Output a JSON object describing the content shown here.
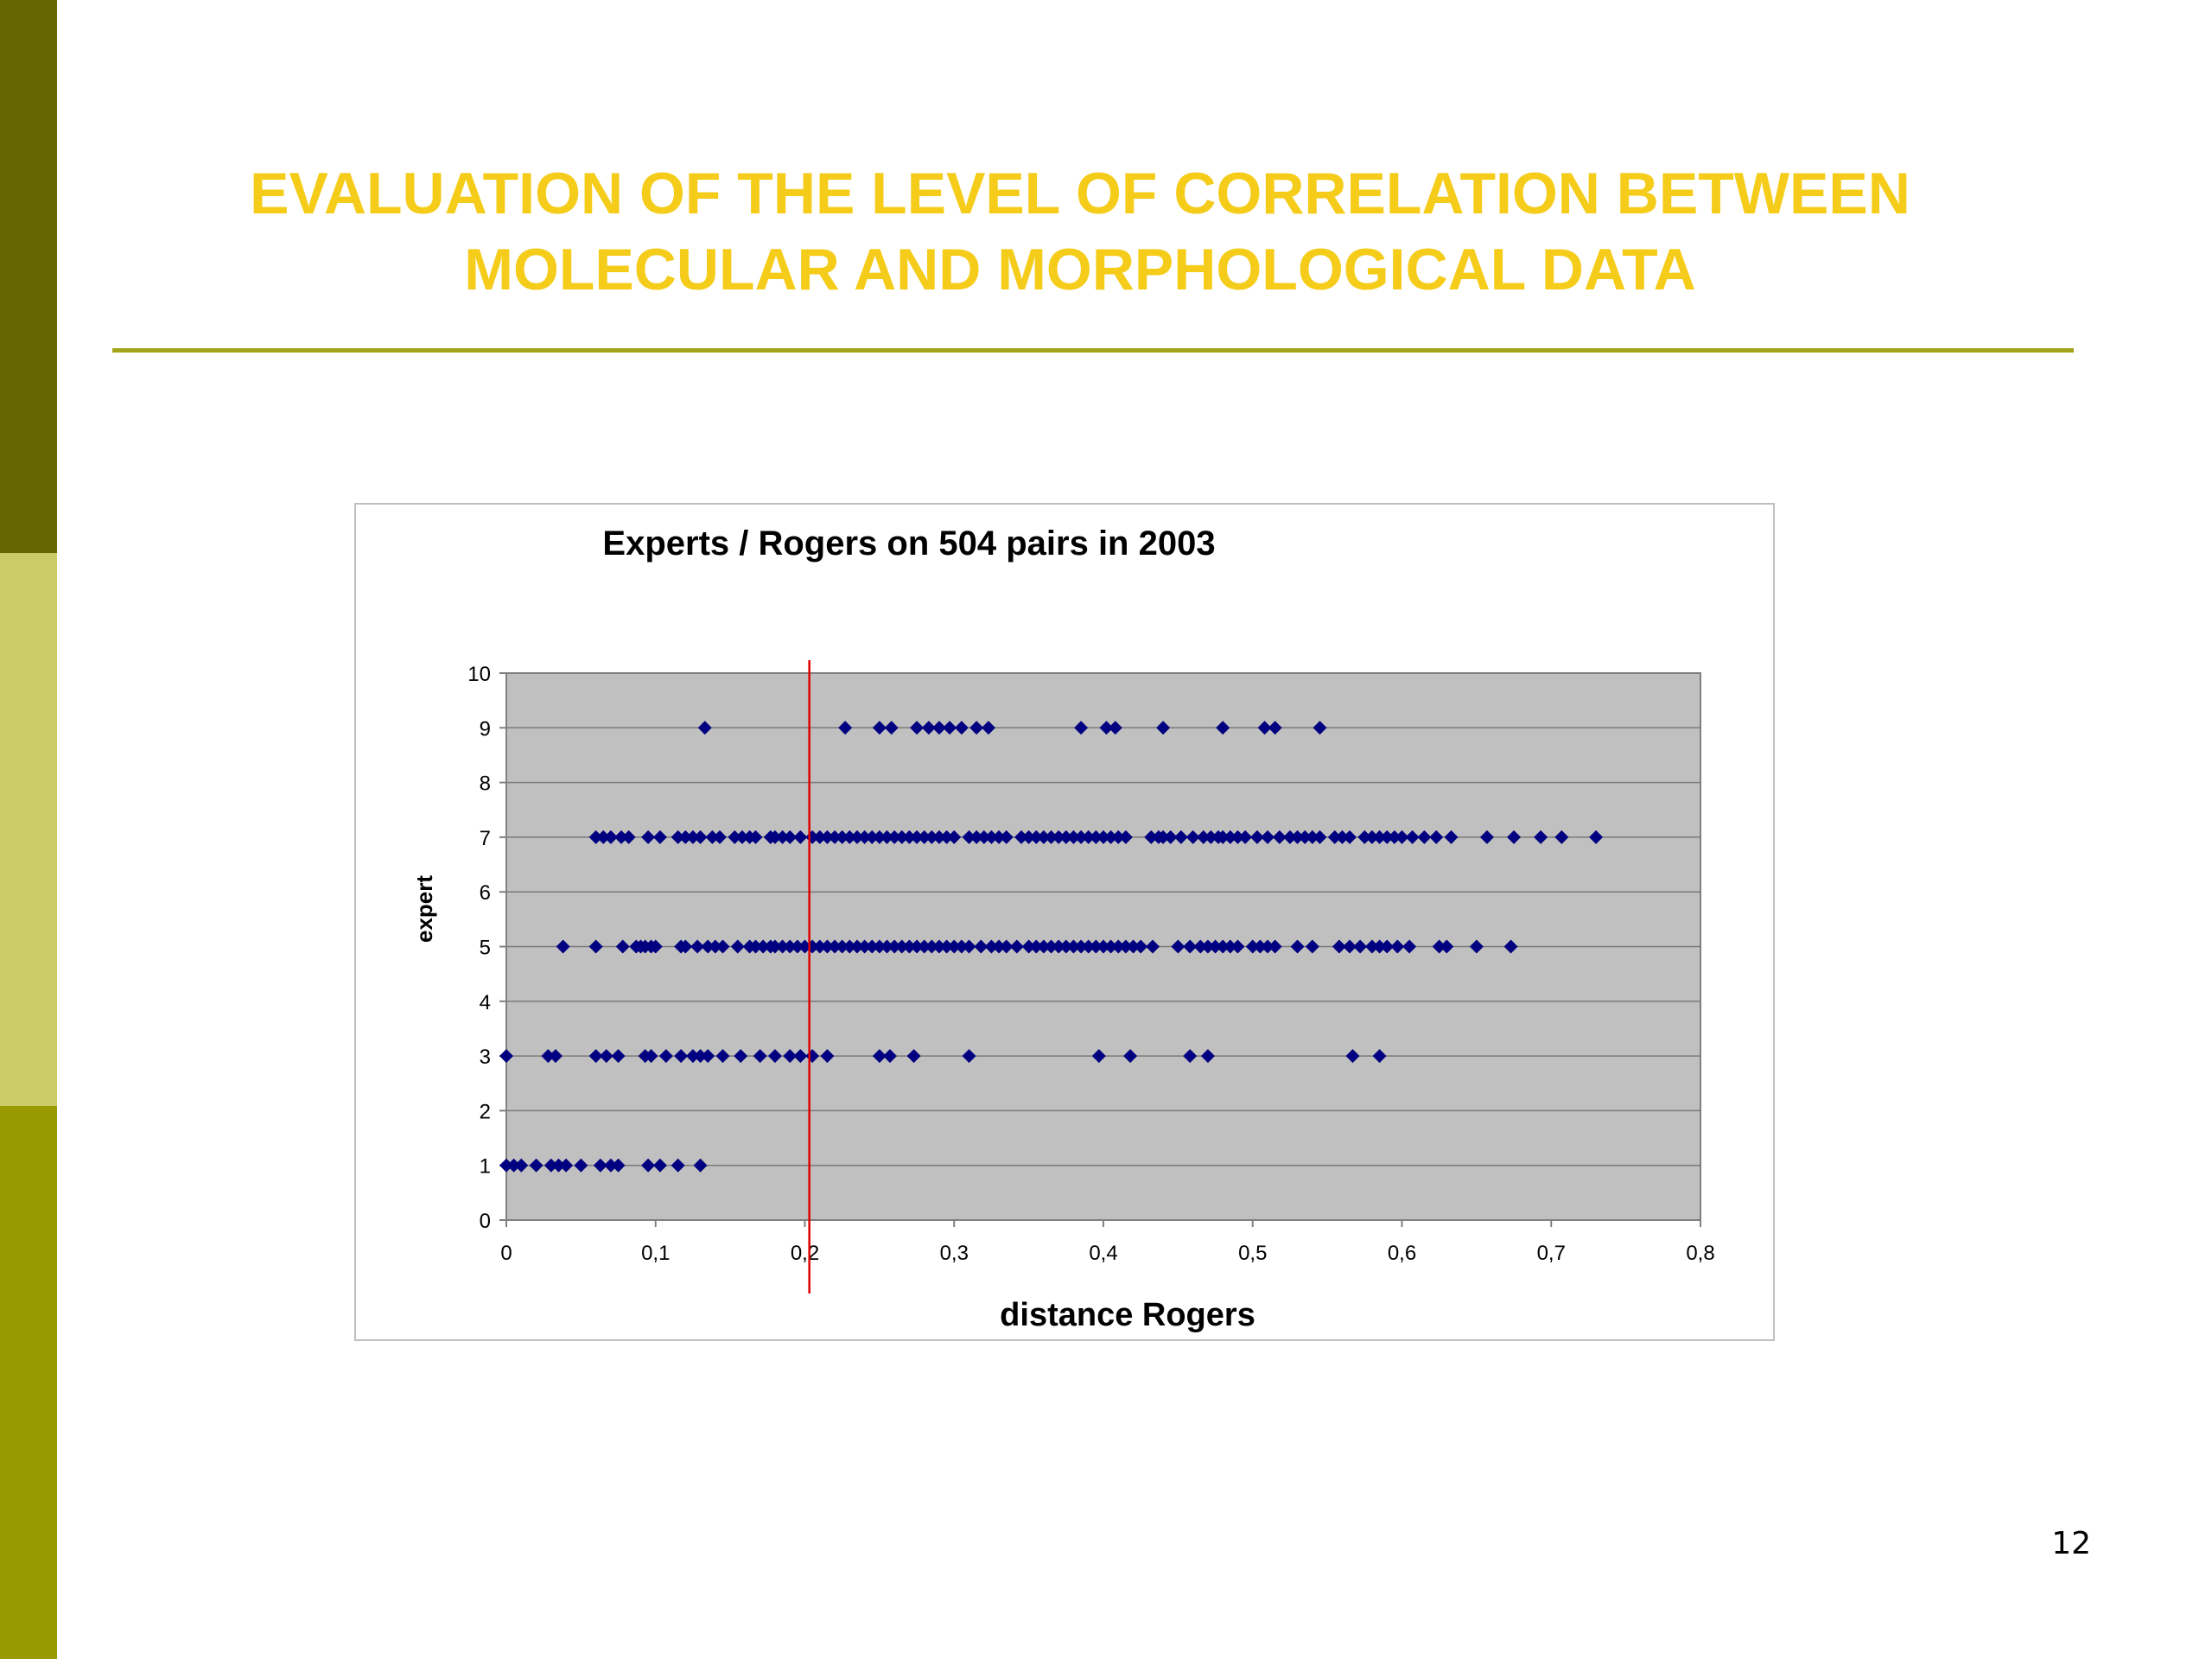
{
  "slide": {
    "title_lines": [
      "EVALUATION OF THE LEVEL OF CORRELATION BETWEEN",
      "MOLECULAR AND MORPHOLOGICAL DATA"
    ],
    "page_number": "12",
    "colors": {
      "title": "#f5cc1a",
      "band_top": "#666600",
      "band_mid": "#cccc66",
      "band_bottom": "#999900",
      "rule": "#a3a31a"
    }
  },
  "chart_data": {
    "type": "scatter",
    "title": "Experts / Rogers on 504 pairs in 2003",
    "xlabel": "distance Rogers",
    "ylabel": "expert",
    "xlim": [
      0,
      0.8
    ],
    "ylim": [
      0,
      10
    ],
    "x_ticks": [
      "0",
      "0,1",
      "0,2",
      "0,3",
      "0,4",
      "0,5",
      "0,6",
      "0,7",
      "0,8"
    ],
    "y_ticks": [
      "0",
      "1",
      "2",
      "3",
      "4",
      "5",
      "6",
      "7",
      "8",
      "9",
      "10"
    ],
    "grid": "horizontal",
    "plot_background": "#c0c0c0",
    "marker_color": "#000080",
    "marker": "diamond",
    "reference_line": {
      "x": 0.203,
      "color": "#e00000"
    },
    "series": [
      {
        "points": {
          "1": [
            0,
            0.005,
            0.01,
            0.02,
            0.03,
            0.035,
            0.04,
            0.05,
            0.063,
            0.07,
            0.075,
            0.095,
            0.103,
            0.115,
            0.13
          ],
          "3": [
            0,
            0.028,
            0.033,
            0.06,
            0.067,
            0.075,
            0.093,
            0.097,
            0.107,
            0.117,
            0.125,
            0.13,
            0.135,
            0.145,
            0.157,
            0.17,
            0.18,
            0.19,
            0.197,
            0.205,
            0.215,
            0.25,
            0.257,
            0.273,
            0.31,
            0.397,
            0.418,
            0.458,
            0.47,
            0.567,
            0.585
          ],
          "5": [
            0.038,
            0.06,
            0.078,
            0.087,
            0.09,
            0.093,
            0.097,
            0.1,
            0.117,
            0.12,
            0.128,
            0.135,
            0.14,
            0.145,
            0.155,
            0.163,
            0.167,
            0.172,
            0.177,
            0.18,
            0.185,
            0.19,
            0.195,
            0.2,
            0.205,
            0.21,
            0.215,
            0.22,
            0.225,
            0.23,
            0.235,
            0.24,
            0.245,
            0.25,
            0.255,
            0.26,
            0.265,
            0.27,
            0.275,
            0.28,
            0.285,
            0.29,
            0.295,
            0.3,
            0.305,
            0.31,
            0.318,
            0.325,
            0.33,
            0.335,
            0.342,
            0.35,
            0.355,
            0.36,
            0.365,
            0.37,
            0.375,
            0.38,
            0.385,
            0.39,
            0.395,
            0.4,
            0.405,
            0.41,
            0.415,
            0.42,
            0.425,
            0.433,
            0.45,
            0.458,
            0.465,
            0.47,
            0.475,
            0.48,
            0.485,
            0.49,
            0.5,
            0.505,
            0.51,
            0.515,
            0.53,
            0.54,
            0.558,
            0.565,
            0.572,
            0.58,
            0.585,
            0.59,
            0.597,
            0.605,
            0.625,
            0.63,
            0.65,
            0.673
          ],
          "7": [
            0.06,
            0.065,
            0.07,
            0.077,
            0.082,
            0.095,
            0.103,
            0.115,
            0.12,
            0.125,
            0.13,
            0.138,
            0.143,
            0.153,
            0.158,
            0.163,
            0.167,
            0.177,
            0.18,
            0.185,
            0.19,
            0.197,
            0.205,
            0.21,
            0.215,
            0.22,
            0.225,
            0.23,
            0.235,
            0.24,
            0.245,
            0.25,
            0.255,
            0.26,
            0.265,
            0.27,
            0.275,
            0.28,
            0.285,
            0.29,
            0.295,
            0.3,
            0.31,
            0.315,
            0.32,
            0.325,
            0.33,
            0.335,
            0.345,
            0.35,
            0.355,
            0.36,
            0.365,
            0.37,
            0.375,
            0.38,
            0.385,
            0.39,
            0.395,
            0.4,
            0.405,
            0.41,
            0.415,
            0.432,
            0.437,
            0.44,
            0.445,
            0.452,
            0.46,
            0.467,
            0.472,
            0.477,
            0.48,
            0.485,
            0.49,
            0.495,
            0.503,
            0.51,
            0.518,
            0.525,
            0.53,
            0.535,
            0.54,
            0.545,
            0.555,
            0.56,
            0.565,
            0.575,
            0.58,
            0.585,
            0.59,
            0.595,
            0.6,
            0.607,
            0.615,
            0.623,
            0.633,
            0.657,
            0.675,
            0.693,
            0.707,
            0.73
          ],
          "9": [
            0.133,
            0.227,
            0.25,
            0.258,
            0.275,
            0.283,
            0.29,
            0.297,
            0.305,
            0.315,
            0.323,
            0.385,
            0.402,
            0.408,
            0.44,
            0.48,
            0.508,
            0.515,
            0.545
          ]
        }
      }
    ]
  }
}
